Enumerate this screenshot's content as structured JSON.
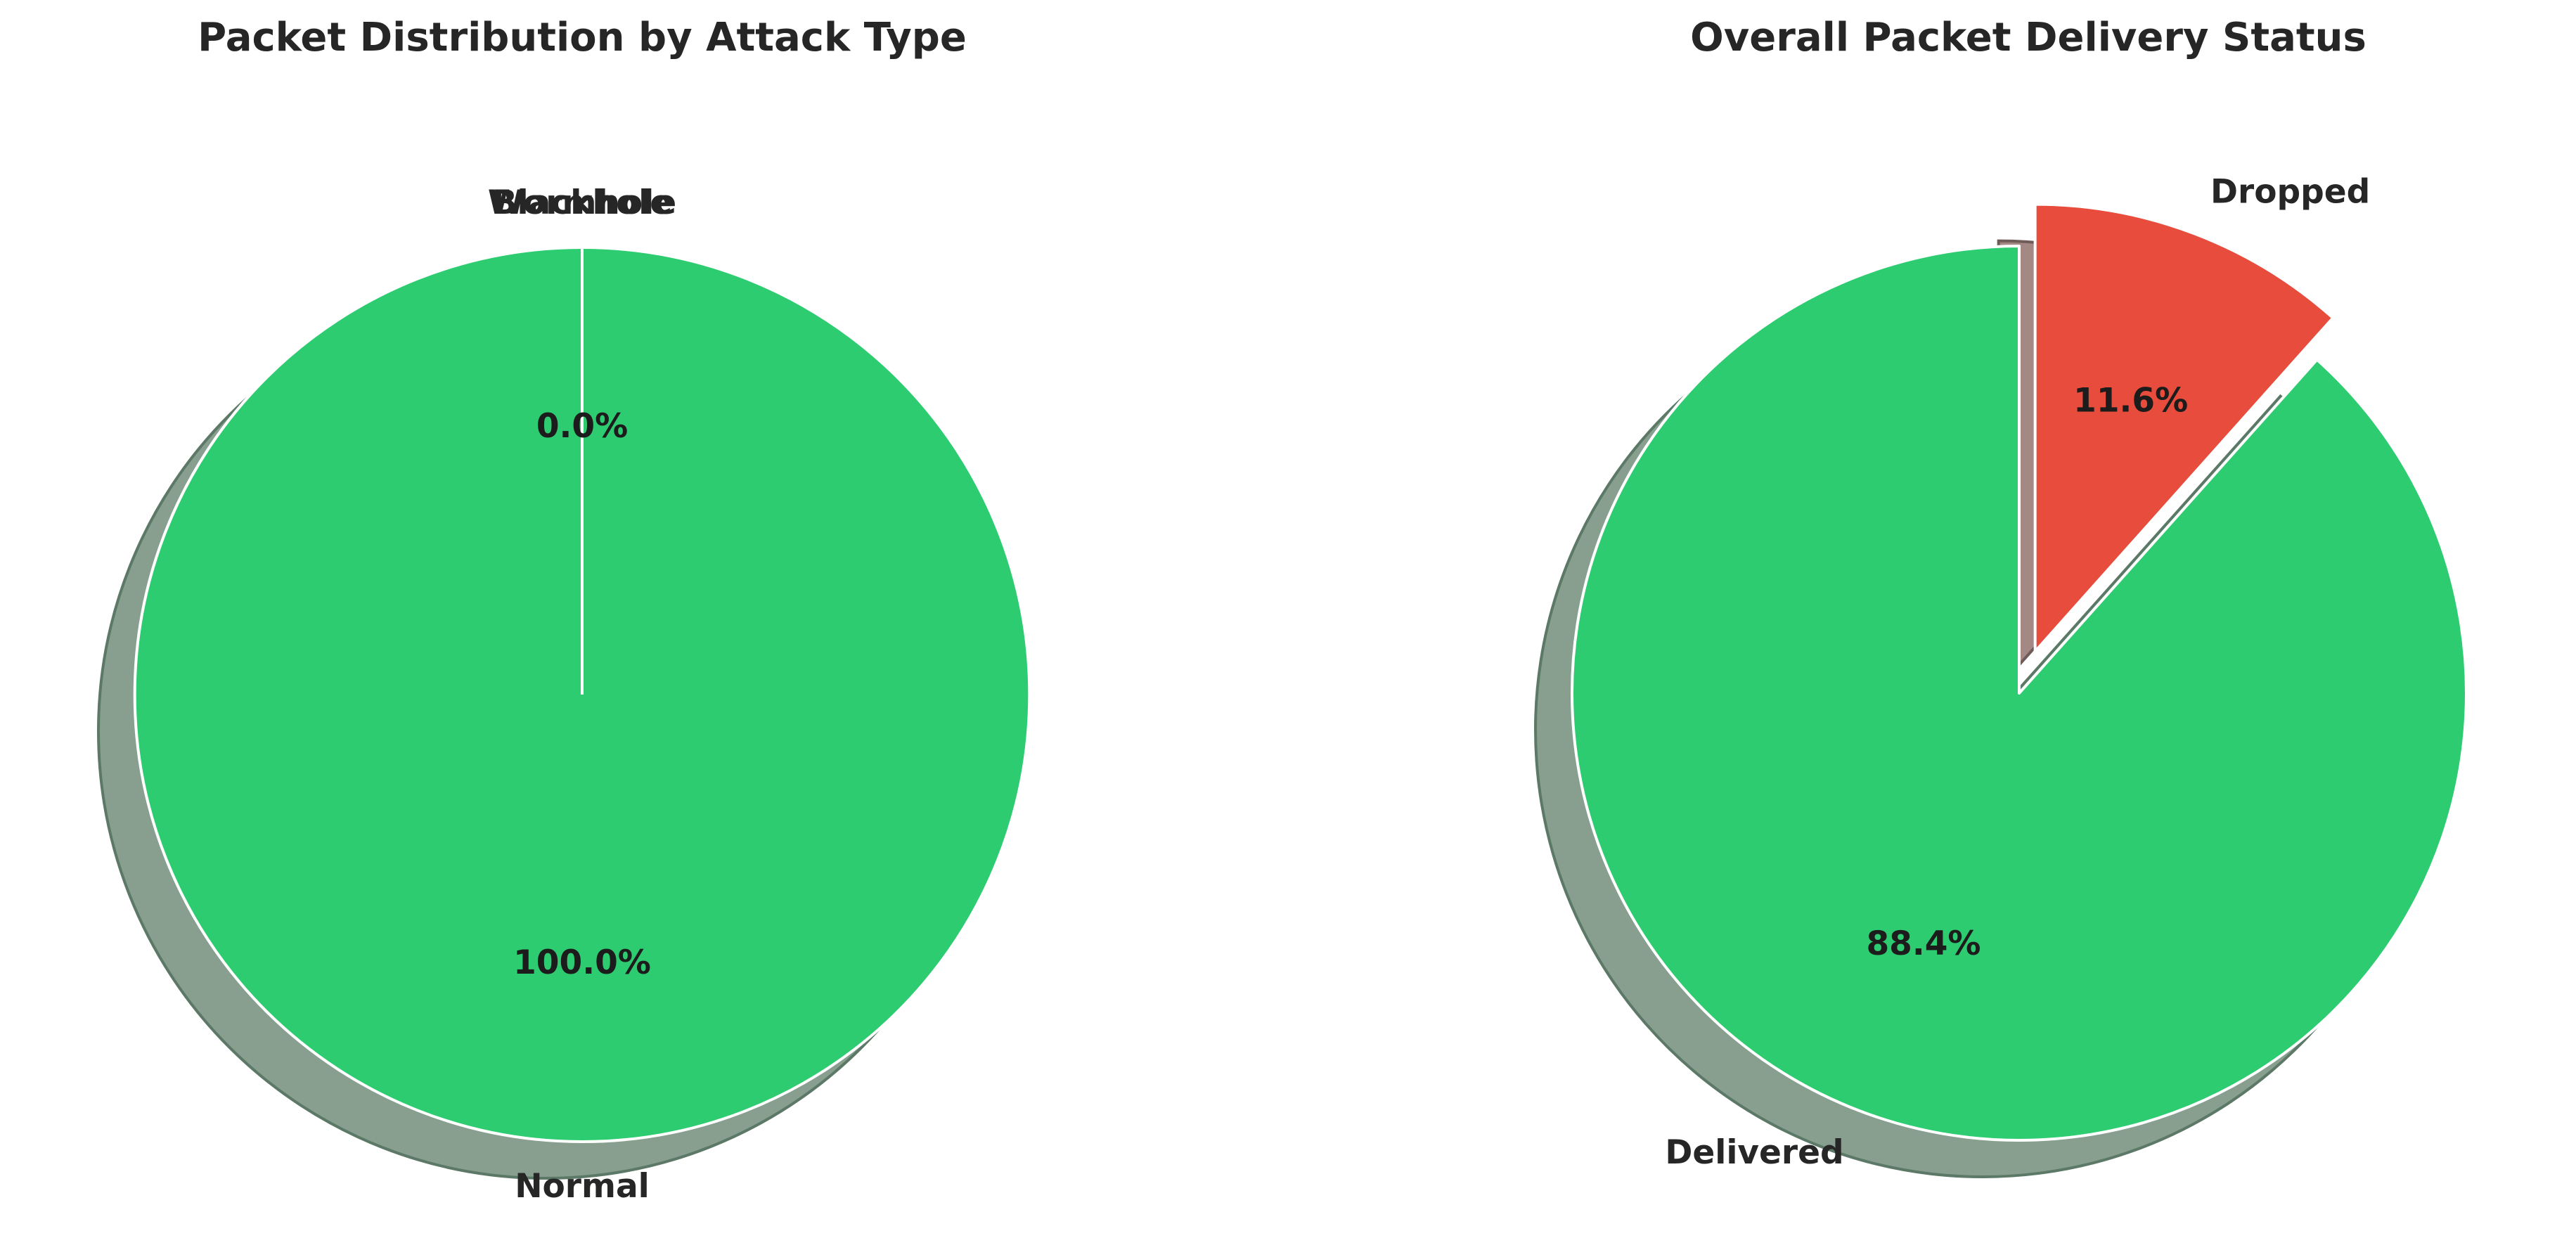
{
  "chart_data": [
    {
      "type": "pie",
      "title": "Packet Distribution by Attack Type",
      "shadow": true,
      "slices": [
        {
          "label": "Normal",
          "value": 100.0,
          "pct_label": "100.0%",
          "color": "#2ecc71"
        },
        {
          "label": "Blackhole",
          "value": 0.0,
          "pct_label": "0.0%",
          "color": "#e74c3c"
        },
        {
          "label": "Wormhole",
          "value": 0.0,
          "pct_label": "",
          "color": "#e67e22"
        }
      ]
    },
    {
      "type": "pie",
      "title": "Overall Packet Delivery Status",
      "shadow": true,
      "slices": [
        {
          "label": "Delivered",
          "value": 88.4,
          "pct_label": "88.4%",
          "color": "#2ecc71",
          "explode": false
        },
        {
          "label": "Dropped",
          "value": 11.6,
          "pct_label": "11.6%",
          "color": "#e74c3c",
          "explode": true
        }
      ]
    }
  ]
}
